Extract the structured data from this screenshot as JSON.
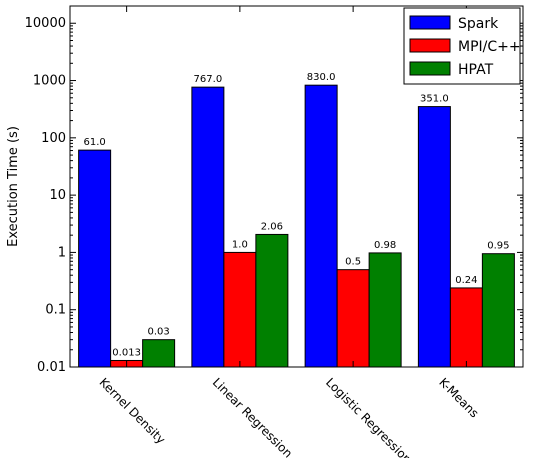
{
  "chart_data": {
    "type": "bar",
    "title": "",
    "xlabel": "",
    "ylabel": "Execution Time (s)",
    "yscale": "log",
    "ylim": [
      0.01,
      20000
    ],
    "yticks": [
      {
        "value": 0.01,
        "label": "0.01"
      },
      {
        "value": 0.1,
        "label": "0.1"
      },
      {
        "value": 1,
        "label": "1"
      },
      {
        "value": 10,
        "label": "10"
      },
      {
        "value": 100,
        "label": "100"
      },
      {
        "value": 1000,
        "label": "1000"
      },
      {
        "value": 10000,
        "label": "10000"
      }
    ],
    "grid": false,
    "legend_position": "top-right",
    "categories": [
      "Kernel Density",
      "Linear Regression",
      "Logistic Regression",
      "K-Means"
    ],
    "series": [
      {
        "name": "Spark",
        "color": "#0000ff",
        "values": [
          61.0,
          767.0,
          830.0,
          351.0
        ],
        "labels": [
          "61.0",
          "767.0",
          "830.0",
          "351.0"
        ]
      },
      {
        "name": "MPI/C++",
        "color": "#ff0000",
        "values": [
          0.013,
          1.0,
          0.5,
          0.24
        ],
        "labels": [
          "0.013",
          "1.0",
          "0.5",
          "0.24"
        ]
      },
      {
        "name": "HPAT",
        "color": "#008000",
        "values": [
          0.03,
          2.06,
          0.98,
          0.95
        ],
        "labels": [
          "0.03",
          "2.06",
          "0.98",
          "0.95"
        ]
      }
    ]
  }
}
